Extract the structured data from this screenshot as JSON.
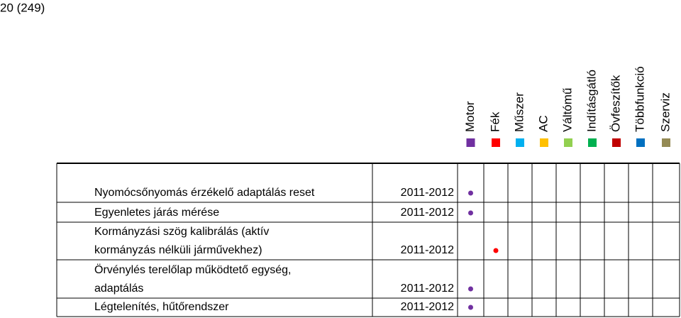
{
  "header": {
    "page": "20 (249)"
  },
  "columns": [
    {
      "name": "Motor",
      "color": "#7030a0"
    },
    {
      "name": "Fék",
      "color": "#ff0000"
    },
    {
      "name": "Műszer",
      "color": "#00b0f0"
    },
    {
      "name": "AC",
      "color": "#ffc000"
    },
    {
      "name": "Váltómű",
      "color": "#92d050"
    },
    {
      "name": "Indításgátló",
      "color": "#00b050"
    },
    {
      "name": "Övfeszítők",
      "color": "#c00000"
    },
    {
      "name": "Többfunkció",
      "color": "#0070c0"
    },
    {
      "name": "Szerviz",
      "color": "#948a54"
    }
  ],
  "table": {
    "rows": [
      {
        "lines": [
          "Nyomócsőnyomás érzékelő adaptálás reset"
        ],
        "years": "2011-2012",
        "column": 0
      },
      {
        "lines": [
          "Egyenletes járás mérése"
        ],
        "years": "2011-2012",
        "column": 0
      },
      {
        "lines": [
          "Kormányzási szög kalibrálás (aktív",
          "kormányzás nélküli járművekhez)"
        ],
        "years": "2011-2012",
        "column": 1
      },
      {
        "lines": [
          "Örvénylés terelőlap működtető egység,",
          "adaptálás"
        ],
        "years": "2011-2012",
        "column": 0
      },
      {
        "lines": [
          "Légtelenítés, hűtőrendszer"
        ],
        "years": "2011-2012",
        "column": 0
      }
    ]
  }
}
